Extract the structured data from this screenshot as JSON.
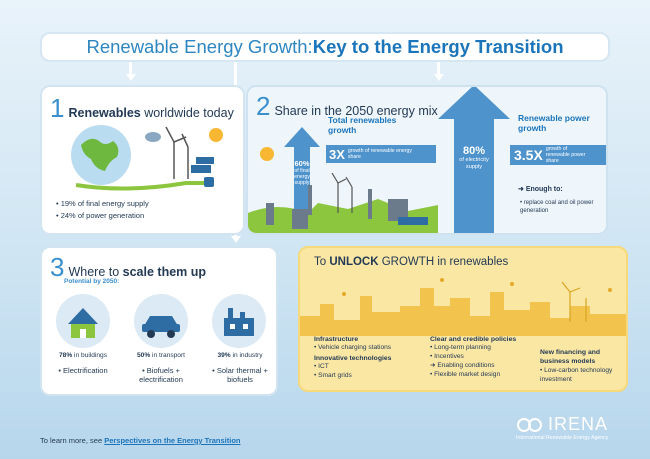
{
  "title": {
    "part1": "Renewable Energy Growth: ",
    "part2": "Key to the Energy Transition"
  },
  "section1": {
    "number": "1",
    "title_bold": "Renewables",
    "title_rest": " worldwide today",
    "bullets": [
      "19% of final energy supply",
      "24% of power generation"
    ]
  },
  "section2": {
    "number": "2",
    "title": "Share in the 2050 energy mix",
    "left_pct": "60%",
    "left_pct_label": "of final energy supply",
    "left_head": "Total renewables growth",
    "left_factor": "3X",
    "left_factor_label": "growth of renewable energy share",
    "right_pct": "80%",
    "right_pct_label": "of electricity supply",
    "right_head": "Renewable power growth",
    "right_factor": "3.5X",
    "right_factor_label": "growth of renewable power share",
    "enough_to": "Enough to:",
    "enough_bullet": "replace coal and oil power generation"
  },
  "section3": {
    "number": "3",
    "title_rest": "Where to ",
    "title_bold": "scale them up",
    "potential_label": "Potential by ",
    "potential_year": "2050:",
    "items": [
      {
        "pct": "78%",
        "where": " in buildings",
        "use": "Electrification"
      },
      {
        "pct": "50%",
        "where": " in transport",
        "use": "Biofuels + electrification"
      },
      {
        "pct": "39%",
        "where": " in industry",
        "use": "Solar thermal + biofuels"
      }
    ]
  },
  "section4": {
    "title_pre": "To ",
    "title_bold": "UNLOCK",
    "title_rest": " GROWTH in renewables",
    "col1": [
      {
        "head": "Infrastructure",
        "items": [
          "Vehicle charging stations"
        ]
      },
      {
        "head": "Innovative technologies",
        "items": [
          "ICT",
          "Smart grids"
        ]
      }
    ],
    "col2": {
      "head": "Clear and credible policies",
      "items": [
        "Long-term planning",
        "Incentives"
      ],
      "arrow_item": "Enabling conditions",
      "last_item": "Flexible market design"
    },
    "col3": {
      "head": "New financing and business models",
      "items": [
        "Low-carbon technology investment"
      ]
    }
  },
  "footer": {
    "lead": "To learn more, see ",
    "link": "Perspectives on the Energy Transition"
  },
  "brand": {
    "name": "IRENA",
    "tagline": "International Renewable Energy Agency"
  },
  "colors": {
    "accent": "#1b75bb",
    "light_blue": "#3a8fcf",
    "panel_yellow": "#fbe7a4",
    "arrow_blue": "#4e93cc"
  }
}
